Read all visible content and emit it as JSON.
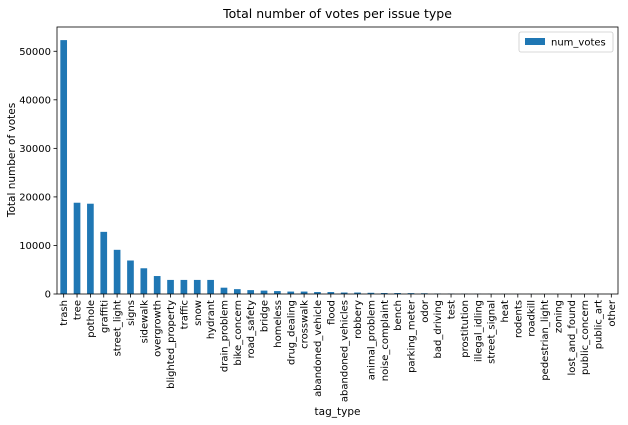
{
  "chart_data": {
    "type": "bar",
    "title": "Total number of votes per issue type",
    "xlabel": "tag_type",
    "ylabel": "Total number of votes",
    "ylim": [
      0,
      55000
    ],
    "yticks": [
      0,
      10000,
      20000,
      30000,
      40000,
      50000
    ],
    "grid": false,
    "legend_position": "top-right",
    "color": "#1f77b4",
    "categories": [
      "trash",
      "tree",
      "pothole",
      "graffiti",
      "street_light",
      "signs",
      "sidewalk",
      "overgrowth",
      "blighted_property",
      "traffic",
      "snow",
      "hydrant",
      "drain_problem",
      "bike_concern",
      "road_safety",
      "bridge",
      "homeless",
      "drug_dealing",
      "crosswalk",
      "abandoned_vehicle",
      "flood",
      "abandoned_vehicles",
      "robbery",
      "animal_problem",
      "noise_complaint",
      "bench",
      "parking_meter",
      "odor",
      "bad_driving",
      "test",
      "prostitution",
      "illegal_idling",
      "street_signal",
      "heat",
      "rodents",
      "roadkill",
      "pedestrian_light",
      "zoning",
      "lost_and_found",
      "public_concern",
      "public_art",
      "other"
    ],
    "series": [
      {
        "name": "num_votes",
        "values": [
          52300,
          18800,
          18600,
          12800,
          9100,
          6900,
          5300,
          3700,
          2900,
          2900,
          2900,
          2900,
          1300,
          1000,
          800,
          700,
          600,
          500,
          500,
          400,
          400,
          300,
          300,
          250,
          200,
          200,
          180,
          150,
          100,
          80,
          60,
          50,
          40,
          30,
          25,
          20,
          15,
          10,
          8,
          5,
          5,
          3
        ]
      }
    ]
  }
}
